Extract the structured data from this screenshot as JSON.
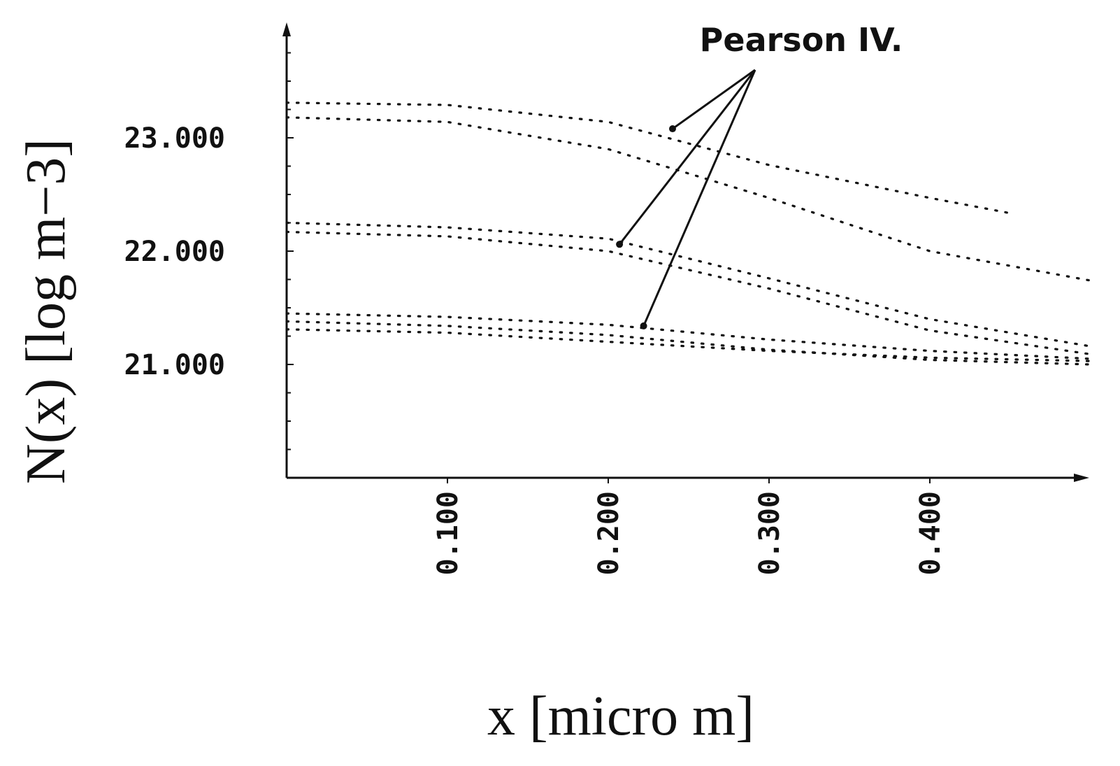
{
  "chart_data": {
    "type": "line",
    "title": "",
    "xlabel": "x  [micro  m]",
    "ylabel": "N(x)  [log  m−3]",
    "xlim": [
      0,
      0.5
    ],
    "ylim": [
      20.0,
      24.0
    ],
    "x_ticks": [
      0.1,
      0.2,
      0.3,
      0.4
    ],
    "x_tick_labels": [
      "0.100",
      "0.200",
      "0.300",
      "0.400"
    ],
    "y_ticks": [
      21.0,
      22.0,
      23.0
    ],
    "y_tick_labels": [
      "21.000",
      "22.000",
      "23.000"
    ],
    "grid": false,
    "legend": "none",
    "line_style": "dotted",
    "color": "#111111",
    "annotation": {
      "text": "Pearson IV.",
      "targets": [
        {
          "x": 0.24,
          "y": 23.08
        },
        {
          "x": 0.207,
          "y": 22.06
        },
        {
          "x": 0.222,
          "y": 21.34
        }
      ]
    },
    "series": [
      {
        "values": [
          [
            0.0,
            23.31
          ],
          [
            0.1,
            23.29
          ],
          [
            0.2,
            23.14
          ],
          [
            0.3,
            22.76
          ],
          [
            0.4,
            22.47
          ],
          [
            0.448,
            22.34
          ]
        ]
      },
      {
        "values": [
          [
            0.0,
            23.18
          ],
          [
            0.1,
            23.14
          ],
          [
            0.2,
            22.9
          ],
          [
            0.3,
            22.47
          ],
          [
            0.4,
            22.0
          ],
          [
            0.5,
            21.74
          ]
        ]
      },
      {
        "values": [
          [
            0.0,
            22.25
          ],
          [
            0.1,
            22.21
          ],
          [
            0.2,
            22.11
          ],
          [
            0.3,
            21.76
          ],
          [
            0.4,
            21.4
          ],
          [
            0.5,
            21.16
          ]
        ]
      },
      {
        "values": [
          [
            0.0,
            22.17
          ],
          [
            0.1,
            22.13
          ],
          [
            0.2,
            22.0
          ],
          [
            0.3,
            21.67
          ],
          [
            0.4,
            21.3
          ],
          [
            0.5,
            21.09
          ]
        ]
      },
      {
        "values": [
          [
            0.0,
            21.45
          ],
          [
            0.1,
            21.42
          ],
          [
            0.2,
            21.35
          ],
          [
            0.3,
            21.22
          ],
          [
            0.4,
            21.12
          ],
          [
            0.5,
            21.05
          ]
        ]
      },
      {
        "values": [
          [
            0.0,
            21.38
          ],
          [
            0.1,
            21.34
          ],
          [
            0.2,
            21.26
          ],
          [
            0.3,
            21.13
          ],
          [
            0.4,
            21.04
          ],
          [
            0.5,
            21.0
          ]
        ]
      },
      {
        "values": [
          [
            0.0,
            21.31
          ],
          [
            0.1,
            21.28
          ],
          [
            0.2,
            21.2
          ],
          [
            0.3,
            21.12
          ],
          [
            0.4,
            21.06
          ],
          [
            0.5,
            21.03
          ]
        ]
      }
    ]
  }
}
